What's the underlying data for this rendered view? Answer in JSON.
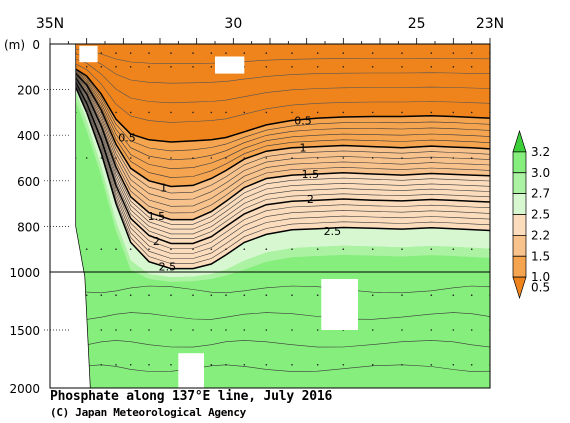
{
  "chart_data": {
    "type": "heatmap",
    "title": "Phosphate along 137°E line, July 2016",
    "credit": "(C) Japan Meteorological Agency",
    "ylabel": "(m)",
    "x_axis": {
      "range": [
        35,
        23
      ],
      "tick_labels": [
        {
          "value": 35,
          "label": "35N"
        },
        {
          "value": 30,
          "label": "30"
        },
        {
          "value": 25,
          "label": "25"
        },
        {
          "value": 23,
          "label": "23N"
        }
      ]
    },
    "y_axis": {
      "range": [
        0,
        2000
      ],
      "break_at": 1000,
      "tick_labels": [
        {
          "value": 0,
          "label": "0"
        },
        {
          "value": 200,
          "label": "200"
        },
        {
          "value": 400,
          "label": "400"
        },
        {
          "value": 600,
          "label": "600"
        },
        {
          "value": 800,
          "label": "800"
        },
        {
          "value": 1000,
          "label": "1000"
        },
        {
          "value": 1500,
          "label": "1500"
        },
        {
          "value": 2000,
          "label": "2000"
        }
      ]
    },
    "colorbar": {
      "labels": [
        "3.2",
        "3.0",
        "2.7",
        "2.5",
        "2.2",
        "1.5",
        "1.0",
        "0.5"
      ],
      "bins": [
        {
          "low": 0.5,
          "color": "#f0841c"
        },
        {
          "low": 1.0,
          "color": "#f5a450"
        },
        {
          "low": 1.5,
          "color": "#f8c28c"
        },
        {
          "low": 2.2,
          "color": "#fbdcbd"
        },
        {
          "low": 2.5,
          "color": "#d7f7d0"
        },
        {
          "low": 2.7,
          "color": "#abf3a2"
        },
        {
          "low": 3.0,
          "color": "#86ee7c"
        },
        {
          "low": 3.2,
          "color": "#3ccf3a"
        }
      ]
    },
    "contour_labels": [
      {
        "text": "0.5",
        "lat": 32.9,
        "depth": 410
      },
      {
        "text": "0.5",
        "lat": 28.1,
        "depth": 335
      },
      {
        "text": "1",
        "lat": 31.9,
        "depth": 630
      },
      {
        "text": "1",
        "lat": 28.1,
        "depth": 455
      },
      {
        "text": "1.5",
        "lat": 32.1,
        "depth": 755
      },
      {
        "text": "1.5",
        "lat": 27.9,
        "depth": 570
      },
      {
        "text": "2",
        "lat": 32.1,
        "depth": 865
      },
      {
        "text": "2",
        "lat": 27.9,
        "depth": 680
      },
      {
        "text": "2.5",
        "lat": 31.8,
        "depth": 975
      },
      {
        "text": "2.5",
        "lat": 27.3,
        "depth": 820
      }
    ],
    "section_depth": {
      "lats": [
        34.3,
        34.0,
        33.6,
        33.2,
        32.8,
        32.3,
        31.7,
        31.1,
        30.6,
        30.2,
        29.7,
        29.1,
        28.4,
        27.7,
        27.0,
        26.2,
        25.4,
        24.6,
        24.0,
        23.5,
        23.0
      ],
      "iso_0_5": [
        110,
        140,
        220,
        330,
        395,
        420,
        430,
        425,
        420,
        410,
        385,
        355,
        335,
        325,
        320,
        318,
        318,
        315,
        318,
        322,
        325
      ],
      "iso_1_0": [
        130,
        180,
        290,
        440,
        545,
        600,
        625,
        620,
        590,
        555,
        505,
        470,
        455,
        450,
        445,
        450,
        455,
        448,
        452,
        455,
        460
      ],
      "iso_1_5": [
        150,
        220,
        360,
        540,
        670,
        740,
        770,
        770,
        735,
        690,
        630,
        590,
        575,
        570,
        565,
        570,
        575,
        568,
        572,
        575,
        578
      ],
      "iso_2_0": [
        170,
        260,
        420,
        620,
        765,
        840,
        875,
        875,
        845,
        800,
        745,
        705,
        690,
        685,
        680,
        685,
        688,
        682,
        686,
        690,
        693
      ],
      "iso_2_5": [
        190,
        300,
        480,
        700,
        870,
        955,
        985,
        985,
        965,
        925,
        870,
        835,
        815,
        810,
        805,
        808,
        812,
        806,
        810,
        814,
        818
      ],
      "iso_2_7": [
        210,
        340,
        540,
        780,
        950,
        1020,
        1045,
        1040,
        1020,
        990,
        950,
        915,
        895,
        890,
        885,
        888,
        892,
        886,
        890,
        894,
        898
      ]
    },
    "ocean_bottom": [
      {
        "lat": 35.0,
        "depth": 0
      },
      {
        "lat": 34.3,
        "depth": 0
      },
      {
        "lat": 34.3,
        "depth": 800
      },
      {
        "lat": 34.05,
        "depth": 1040
      },
      {
        "lat": 33.9,
        "depth": 2000
      }
    ],
    "missing_regions": [
      {
        "lat": [
          34.2,
          33.7
        ],
        "depth": [
          8,
          80
        ]
      },
      {
        "lat": [
          30.5,
          29.7
        ],
        "depth": [
          55,
          130
        ]
      },
      {
        "lat": [
          27.6,
          26.6
        ],
        "depth": [
          1060,
          1500
        ]
      },
      {
        "lat": [
          31.5,
          30.8
        ],
        "depth": [
          1700,
          2000
        ]
      }
    ],
    "grid": false
  }
}
